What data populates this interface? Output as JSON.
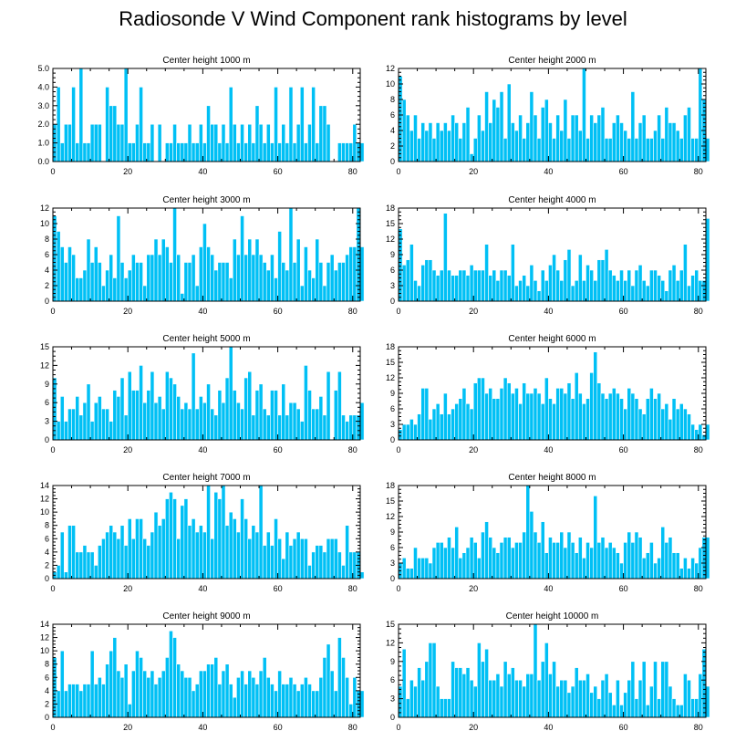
{
  "title": "Radiosonde V Wind Component rank histograms by level",
  "colors": {
    "bar": "#00c0f5",
    "bar_edge": "#ffffff",
    "axis": "#000000"
  },
  "chart_data": [
    {
      "type": "bar",
      "title": "Center height 1000 m",
      "xlim": [
        0,
        82
      ],
      "xticks": [
        0,
        20,
        40,
        60,
        80
      ],
      "ylim": [
        0,
        5
      ],
      "yticks": [
        "0.0",
        "1.0",
        "2.0",
        "3.0",
        "4.0",
        "5.0"
      ],
      "values": [
        2,
        4,
        1,
        2,
        2,
        4,
        1,
        5,
        1,
        1,
        2,
        2,
        2,
        0,
        4,
        3,
        3,
        2,
        2,
        5,
        1,
        1,
        2,
        4,
        1,
        1,
        2,
        0,
        2,
        0,
        1,
        1,
        2,
        1,
        1,
        1,
        2,
        1,
        1,
        2,
        1,
        3,
        2,
        2,
        1,
        2,
        1,
        4,
        2,
        1,
        2,
        1,
        2,
        1,
        3,
        2,
        1,
        2,
        1,
        4,
        1,
        2,
        1,
        4,
        1,
        2,
        4,
        1,
        2,
        4,
        1,
        3,
        3,
        2,
        0,
        0,
        1,
        1,
        1,
        1,
        2,
        1,
        1
      ]
    },
    {
      "type": "bar",
      "title": "Center height 2000 m",
      "xlim": [
        0,
        82
      ],
      "xticks": [
        0,
        20,
        40,
        60,
        80
      ],
      "ylim": [
        0,
        12
      ],
      "yticks": [
        "0",
        "2",
        "4",
        "6",
        "8",
        "10",
        "12"
      ],
      "values": [
        11,
        8,
        6,
        4,
        6,
        3,
        5,
        4,
        5,
        3,
        5,
        4,
        5,
        4,
        6,
        5,
        3,
        5,
        7,
        1,
        3,
        6,
        4,
        9,
        5,
        8,
        7,
        9,
        3,
        10,
        5,
        4,
        6,
        3,
        5,
        9,
        6,
        3,
        7,
        8,
        5,
        3,
        6,
        4,
        8,
        3,
        6,
        6,
        4,
        12,
        3,
        6,
        5,
        6,
        7,
        3,
        3,
        5,
        6,
        5,
        4,
        3,
        9,
        3,
        5,
        6,
        3,
        3,
        4,
        6,
        3,
        7,
        5,
        5,
        4,
        3,
        6,
        7,
        3,
        3,
        12,
        8,
        3
      ]
    },
    {
      "type": "bar",
      "title": "Center height 3000 m",
      "xlim": [
        0,
        82
      ],
      "xticks": [
        0,
        20,
        40,
        60,
        80
      ],
      "ylim": [
        0,
        12
      ],
      "yticks": [
        "0",
        "2",
        "4",
        "6",
        "8",
        "10",
        "12"
      ],
      "values": [
        11,
        9,
        7,
        5,
        7,
        6,
        3,
        3,
        4,
        8,
        5,
        7,
        5,
        2,
        4,
        6,
        3,
        11,
        5,
        3,
        4,
        6,
        5,
        5,
        2,
        6,
        6,
        8,
        6,
        8,
        7,
        5,
        12,
        6,
        1,
        5,
        5,
        6,
        2,
        7,
        10,
        7,
        6,
        4,
        5,
        5,
        5,
        3,
        8,
        6,
        11,
        6,
        8,
        6,
        8,
        6,
        5,
        4,
        6,
        3,
        9,
        5,
        4,
        12,
        5,
        8,
        2,
        7,
        4,
        3,
        8,
        5,
        2,
        5,
        6,
        4,
        5,
        5,
        6,
        7,
        7,
        12,
        7
      ]
    },
    {
      "type": "bar",
      "title": "Center height 4000 m",
      "xlim": [
        0,
        82
      ],
      "xticks": [
        0,
        20,
        40,
        60,
        80
      ],
      "ylim": [
        0,
        18
      ],
      "yticks": [
        "0",
        "3",
        "6",
        "9",
        "12",
        "15",
        "18"
      ],
      "values": [
        14,
        7,
        8,
        11,
        4,
        3,
        7,
        8,
        8,
        6,
        5,
        6,
        17,
        6,
        5,
        5,
        6,
        6,
        5,
        7,
        6,
        6,
        6,
        11,
        5,
        6,
        4,
        6,
        6,
        5,
        11,
        3,
        4,
        5,
        3,
        7,
        4,
        2,
        6,
        4,
        7,
        9,
        6,
        4,
        8,
        10,
        3,
        4,
        9,
        4,
        7,
        6,
        4,
        8,
        8,
        10,
        6,
        5,
        4,
        6,
        4,
        6,
        3,
        6,
        7,
        4,
        3,
        6,
        6,
        5,
        4,
        2,
        6,
        7,
        4,
        6,
        11,
        3,
        5,
        6,
        4,
        4,
        16
      ]
    },
    {
      "type": "bar",
      "title": "Center height 5000 m",
      "xlim": [
        0,
        82
      ],
      "xticks": [
        0,
        20,
        40,
        60,
        80
      ],
      "ylim": [
        0,
        15
      ],
      "yticks": [
        "0",
        "3",
        "6",
        "9",
        "12",
        "15"
      ],
      "values": [
        10,
        3,
        7,
        3,
        5,
        5,
        7,
        4,
        6,
        9,
        3,
        6,
        7,
        5,
        5,
        3,
        8,
        7,
        10,
        4,
        11,
        8,
        8,
        12,
        6,
        8,
        11,
        6,
        7,
        5,
        11,
        10,
        9,
        7,
        5,
        6,
        5,
        14,
        5,
        7,
        6,
        9,
        5,
        4,
        8,
        6,
        10,
        15,
        8,
        6,
        5,
        10,
        11,
        4,
        8,
        9,
        5,
        4,
        8,
        8,
        4,
        9,
        4,
        6,
        6,
        5,
        3,
        12,
        8,
        5,
        5,
        7,
        4,
        11,
        0,
        8,
        11,
        4,
        3,
        4,
        4,
        4,
        6
      ]
    },
    {
      "type": "bar",
      "title": "Center height 6000 m",
      "xlim": [
        0,
        82
      ],
      "xticks": [
        0,
        20,
        40,
        60,
        80
      ],
      "ylim": [
        0,
        18
      ],
      "yticks": [
        "0",
        "3",
        "6",
        "9",
        "12",
        "15",
        "18"
      ],
      "values": [
        2,
        3,
        3,
        4,
        3,
        5,
        10,
        10,
        4,
        6,
        7,
        5,
        9,
        5,
        6,
        7,
        8,
        10,
        7,
        6,
        11,
        12,
        12,
        9,
        10,
        8,
        8,
        10,
        12,
        11,
        9,
        10,
        7,
        11,
        9,
        9,
        10,
        9,
        7,
        12,
        8,
        7,
        10,
        10,
        9,
        11,
        8,
        13,
        9,
        7,
        8,
        13,
        17,
        11,
        9,
        8,
        9,
        10,
        9,
        8,
        6,
        10,
        9,
        8,
        6,
        5,
        8,
        10,
        8,
        9,
        6,
        7,
        4,
        8,
        6,
        7,
        6,
        5,
        3,
        2,
        3,
        1,
        3
      ]
    },
    {
      "type": "bar",
      "title": "Center height 7000 m",
      "xlim": [
        0,
        82
      ],
      "xticks": [
        0,
        20,
        40,
        60,
        80
      ],
      "ylim": [
        0,
        14
      ],
      "yticks": [
        "0",
        "2",
        "4",
        "6",
        "8",
        "10",
        "12",
        "14"
      ],
      "values": [
        1,
        2,
        7,
        1,
        8,
        8,
        4,
        4,
        5,
        4,
        4,
        2,
        5,
        6,
        7,
        8,
        7,
        6,
        8,
        5,
        9,
        6,
        9,
        9,
        6,
        5,
        7,
        10,
        8,
        9,
        12,
        13,
        12,
        6,
        11,
        12,
        8,
        9,
        7,
        8,
        7,
        14,
        6,
        13,
        12,
        14,
        8,
        10,
        9,
        7,
        12,
        9,
        6,
        8,
        7,
        14,
        5,
        7,
        5,
        9,
        6,
        3,
        7,
        5,
        6,
        7,
        6,
        6,
        2,
        4,
        5,
        5,
        4,
        6,
        6,
        6,
        4,
        2,
        8,
        4,
        4,
        4,
        1
      ]
    },
    {
      "type": "bar",
      "title": "Center height 8000 m",
      "xlim": [
        0,
        82
      ],
      "xticks": [
        0,
        20,
        40,
        60,
        80
      ],
      "ylim": [
        0,
        18
      ],
      "yticks": [
        "0",
        "3",
        "6",
        "9",
        "12",
        "15",
        "18"
      ],
      "values": [
        3,
        4,
        2,
        2,
        6,
        4,
        4,
        4,
        3,
        6,
        7,
        7,
        6,
        8,
        6,
        10,
        4,
        5,
        6,
        8,
        7,
        4,
        9,
        11,
        8,
        6,
        5,
        7,
        8,
        8,
        6,
        7,
        7,
        9,
        18,
        13,
        9,
        7,
        11,
        5,
        8,
        7,
        7,
        9,
        6,
        9,
        7,
        5,
        8,
        4,
        7,
        6,
        16,
        7,
        8,
        6,
        7,
        6,
        5,
        3,
        7,
        9,
        7,
        9,
        8,
        4,
        5,
        7,
        3,
        4,
        10,
        7,
        8,
        5,
        5,
        2,
        4,
        2,
        4,
        3,
        6,
        8,
        8
      ]
    },
    {
      "type": "bar",
      "title": "Center height 9000 m",
      "xlim": [
        0,
        82
      ],
      "xticks": [
        0,
        20,
        40,
        60,
        80
      ],
      "ylim": [
        0,
        14
      ],
      "yticks": [
        "0",
        "2",
        "4",
        "6",
        "8",
        "10",
        "12",
        "14"
      ],
      "values": [
        9,
        4,
        10,
        4,
        5,
        5,
        5,
        4,
        5,
        5,
        10,
        5,
        6,
        5,
        8,
        10,
        12,
        7,
        6,
        8,
        2,
        7,
        10,
        9,
        7,
        6,
        7,
        5,
        6,
        7,
        9,
        13,
        12,
        8,
        7,
        6,
        6,
        4,
        5,
        7,
        7,
        8,
        8,
        9,
        5,
        7,
        8,
        5,
        3,
        6,
        7,
        5,
        7,
        6,
        5,
        7,
        9,
        6,
        5,
        4,
        7,
        5,
        5,
        6,
        5,
        4,
        5,
        6,
        5,
        4,
        4,
        6,
        9,
        11,
        7,
        4,
        12,
        9,
        6,
        2,
        6,
        4,
        4
      ]
    },
    {
      "type": "bar",
      "title": "Center height 10000 m",
      "xlim": [
        0,
        82
      ],
      "xticks": [
        0,
        20,
        40,
        60,
        80
      ],
      "ylim": [
        0,
        15
      ],
      "yticks": [
        "0",
        "3",
        "6",
        "9",
        "12",
        "15"
      ],
      "values": [
        5,
        11,
        3,
        6,
        5,
        8,
        6,
        9,
        12,
        12,
        5,
        3,
        3,
        3,
        9,
        8,
        8,
        7,
        8,
        6,
        5,
        12,
        9,
        11,
        6,
        6,
        7,
        5,
        9,
        7,
        8,
        6,
        6,
        5,
        7,
        7,
        15,
        6,
        9,
        12,
        7,
        9,
        5,
        6,
        6,
        4,
        5,
        8,
        6,
        6,
        7,
        4,
        5,
        3,
        6,
        7,
        4,
        2,
        6,
        2,
        4,
        6,
        9,
        3,
        6,
        9,
        2,
        5,
        9,
        3,
        9,
        9,
        5,
        3,
        2,
        2,
        7,
        6,
        3,
        3,
        7,
        11,
        5
      ]
    }
  ]
}
